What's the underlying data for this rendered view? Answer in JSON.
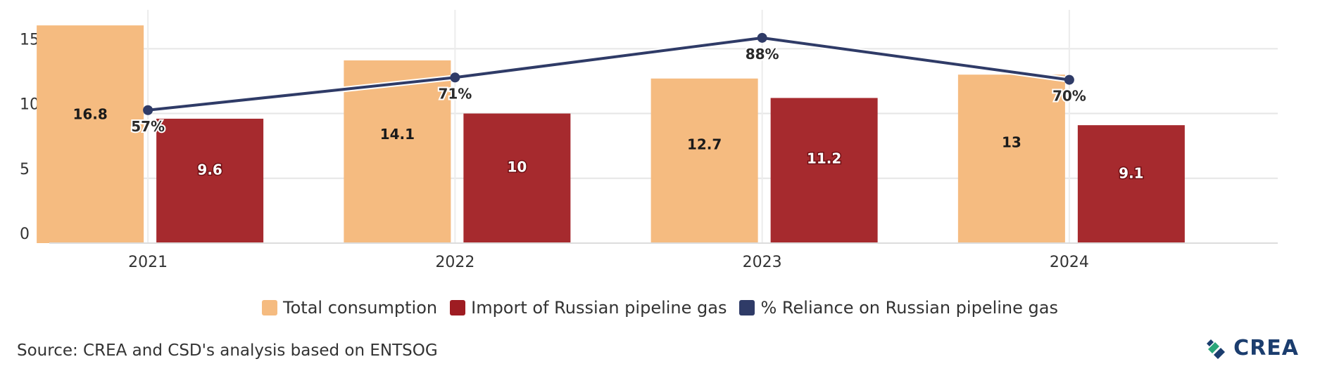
{
  "chart_data": {
    "type": "bar",
    "categories": [
      "2021",
      "2022",
      "2023",
      "2024"
    ],
    "series": [
      {
        "name": "Total consumption",
        "values": [
          16.8,
          14.1,
          12.7,
          13
        ],
        "labels": [
          "16.8",
          "14.1",
          "12.7",
          "13"
        ],
        "color": "#f5bb80"
      },
      {
        "name": "Import of Russian pipeline gas",
        "values": [
          9.6,
          10,
          11.2,
          9.1
        ],
        "labels": [
          "9.6",
          "10",
          "11.2",
          "9.1"
        ],
        "color": "#a62a2e"
      }
    ],
    "line_series": {
      "name": "% Reliance on Russian pipeline gas",
      "values": [
        57,
        71,
        88,
        70
      ],
      "labels": [
        "57%",
        "71%",
        "88%",
        "70%"
      ],
      "color": "#2f3b67"
    },
    "yticks": [
      "0",
      "5",
      "10",
      "15"
    ],
    "ylim": [
      0,
      18
    ],
    "grid": true,
    "legend_position": "bottom"
  },
  "legend": [
    {
      "label": "Total consumption",
      "color": "#f5bb80"
    },
    {
      "label": "Import of Russian pipeline gas",
      "color": "#a62a2e"
    },
    {
      "label": "% Reliance on Russian pipeline gas",
      "color": "#2f3b67"
    }
  ],
  "source": "Source: CREA and CSD's analysis based on ENTSOG",
  "logo": {
    "text": "CREA"
  }
}
